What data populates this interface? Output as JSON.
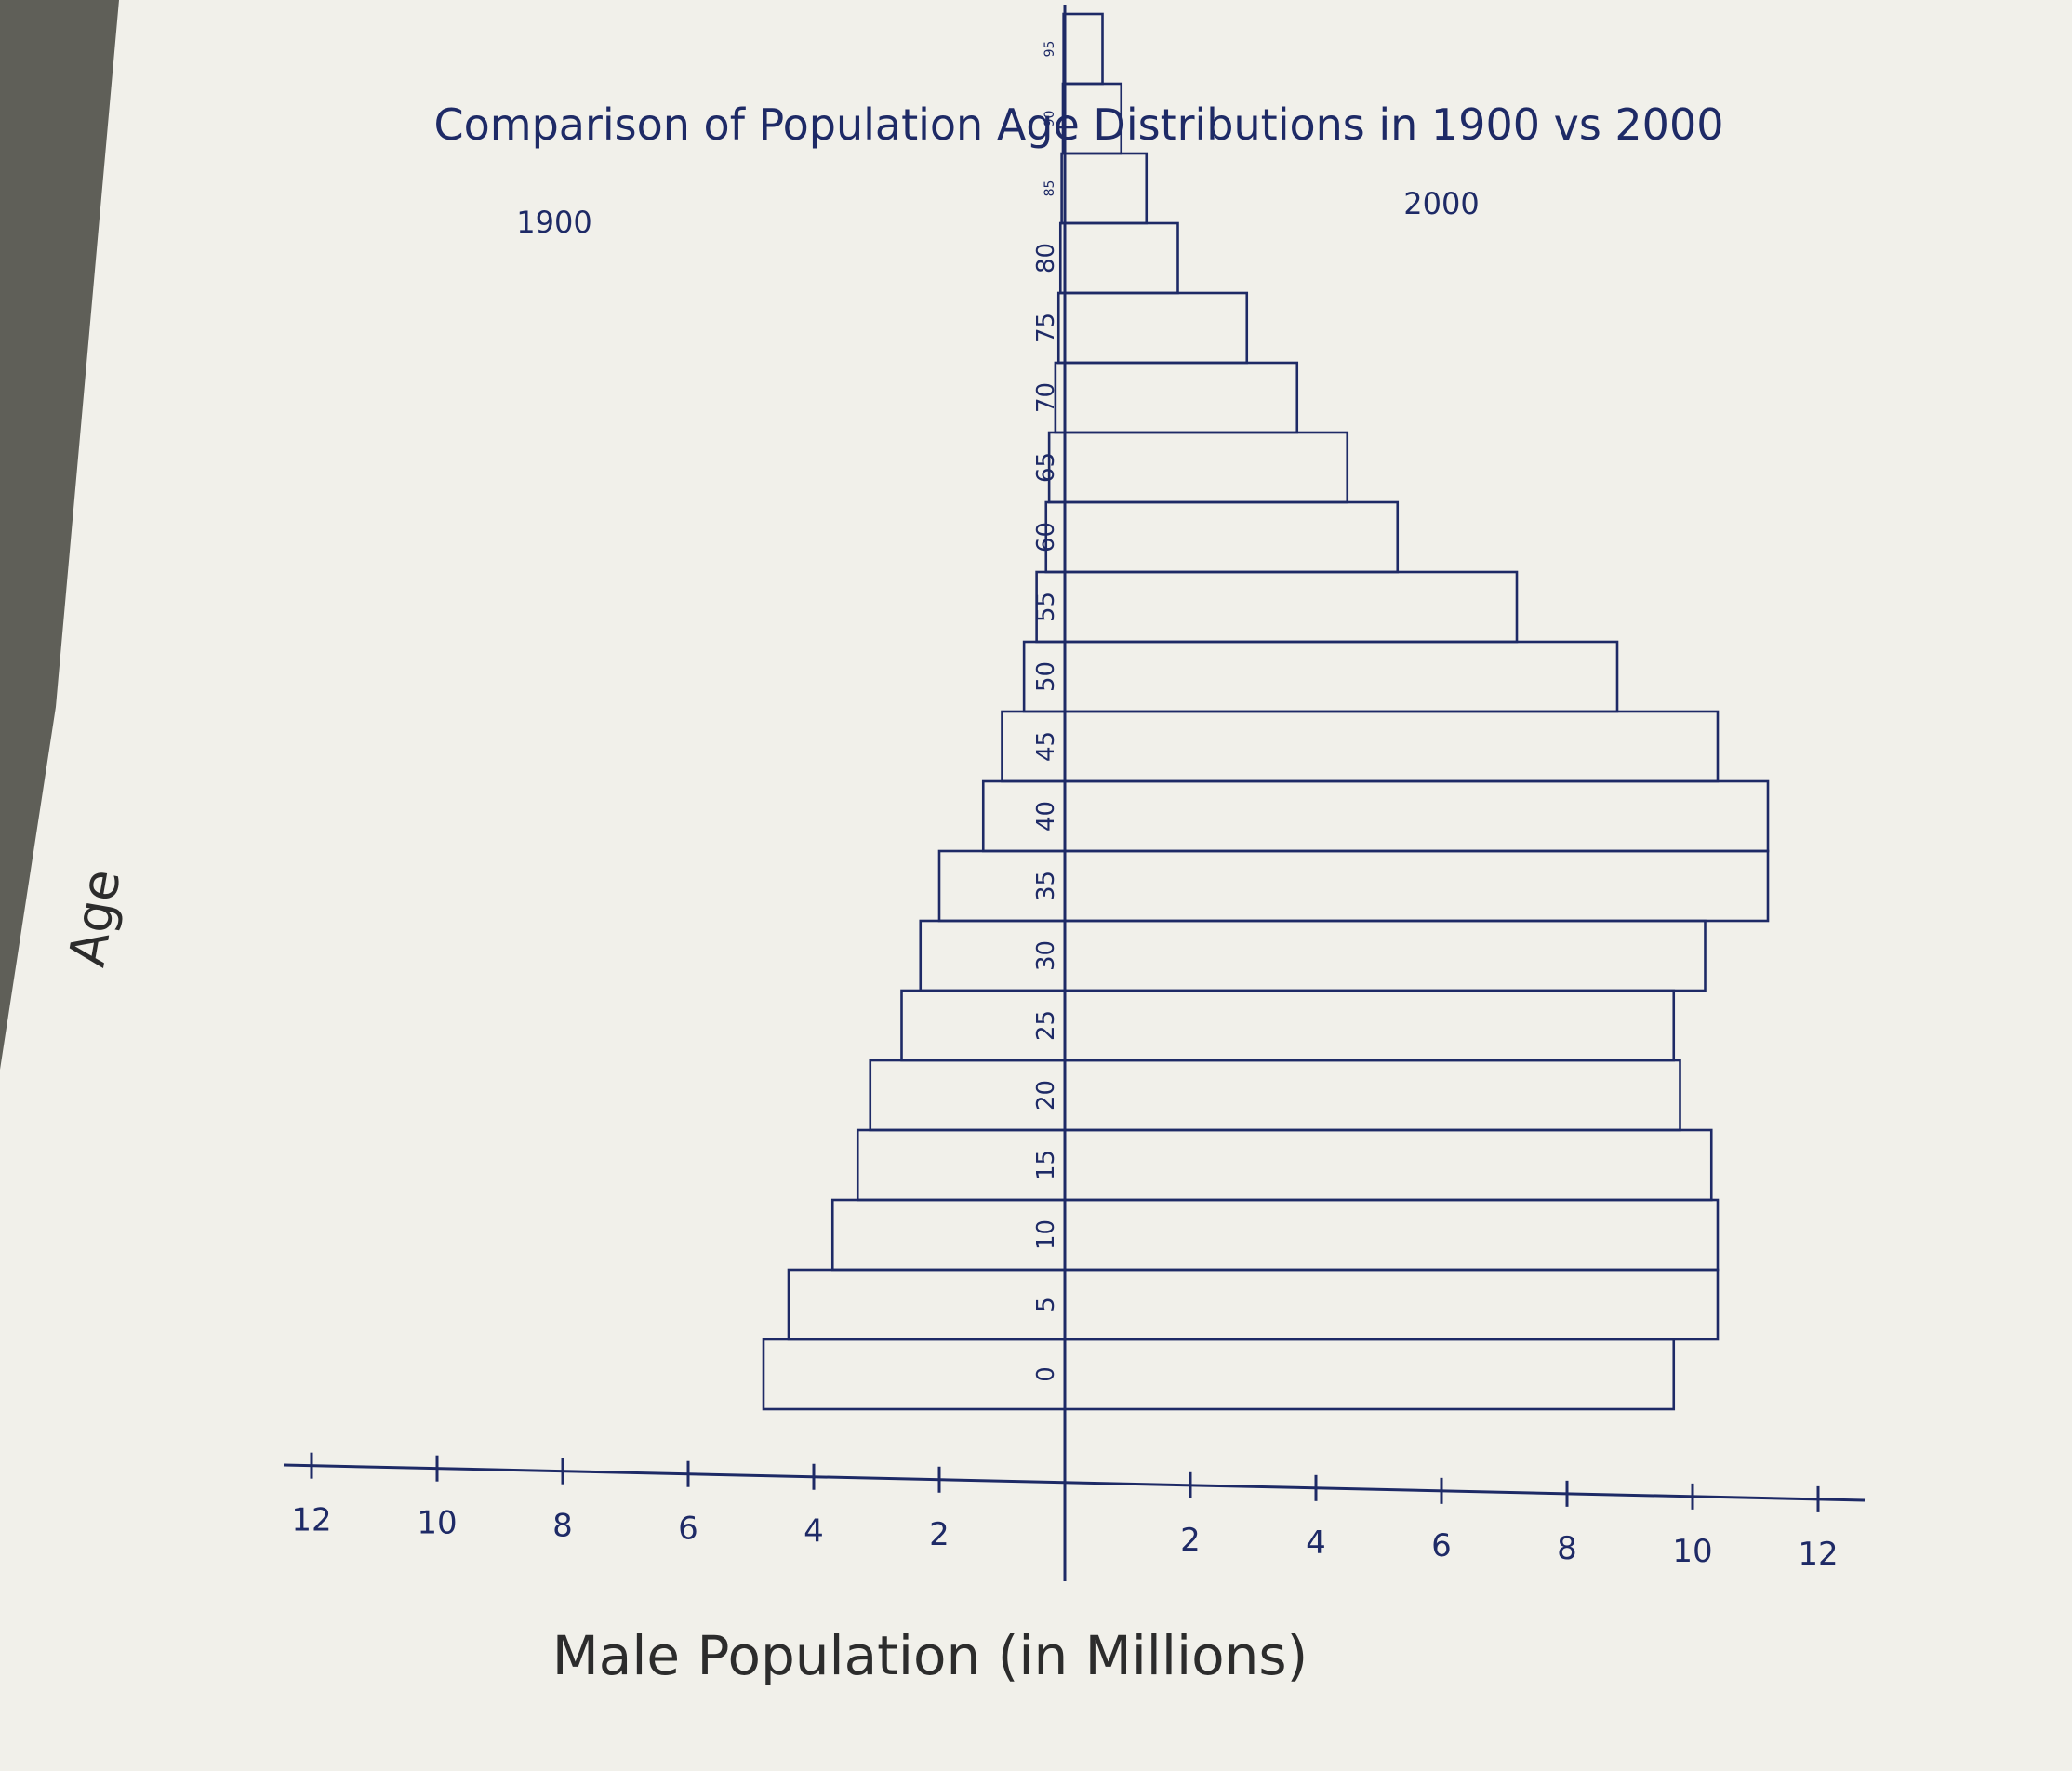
{
  "chart_data": {
    "type": "bar",
    "subtype": "population-pyramid",
    "title": "Comparison of Population Age Distributions in 1900 vs 2000",
    "left_label": "1900",
    "right_label": "2000",
    "xlabel": "Male Population (in Millions)",
    "ylabel": "Age",
    "xlim": [
      -12,
      12
    ],
    "x_ticks": [
      -12,
      -10,
      -8,
      -6,
      -4,
      -2,
      2,
      4,
      6,
      8,
      10,
      12
    ],
    "x_tick_labels": [
      "12",
      "10",
      "8",
      "6",
      "4",
      "2",
      "2",
      "4",
      "6",
      "8",
      "10",
      "12"
    ],
    "age_groups": [
      "0",
      "5",
      "10",
      "15",
      "20",
      "25",
      "30",
      "35",
      "40",
      "45",
      "50",
      "55",
      "60",
      "65",
      "70",
      "75",
      "80",
      "85",
      "90",
      "95"
    ],
    "age_labels": [
      "0",
      "5",
      "10",
      "15",
      "20",
      "25",
      "30",
      "35",
      "40",
      "45",
      "50",
      "55",
      "60",
      "65",
      "70",
      "75",
      "80",
      "85",
      "90",
      "95"
    ],
    "series": [
      {
        "name": "1900",
        "side": "left",
        "values": [
          4.8,
          4.4,
          3.7,
          3.3,
          3.1,
          2.6,
          2.3,
          2.0,
          1.3,
          1.0,
          0.65,
          0.45,
          0.3,
          0.25,
          0.15,
          0.1,
          0.07,
          0.05,
          0.03,
          0.02
        ]
      },
      {
        "name": "2000",
        "side": "right",
        "values": [
          9.7,
          10.4,
          10.4,
          10.3,
          9.8,
          9.7,
          10.2,
          11.2,
          11.2,
          10.4,
          8.8,
          7.2,
          5.3,
          4.5,
          3.7,
          2.9,
          1.8,
          1.3,
          0.9,
          0.6
        ]
      }
    ],
    "grid": false,
    "legend": "none"
  }
}
